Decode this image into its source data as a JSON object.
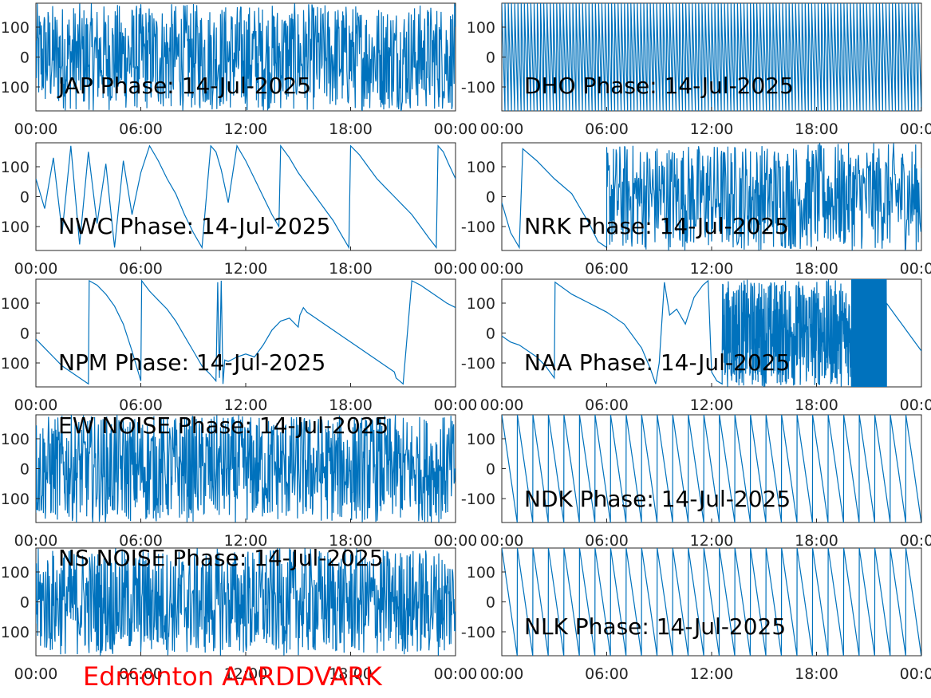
{
  "caption": "Edmonton AARDDVARK",
  "colors": {
    "series": "#0072BD",
    "caption": "#ff0000",
    "axes": "#262626"
  },
  "chart_data": [
    {
      "type": "line",
      "title": "JAP Phase: 14-Jul-2025",
      "x_ticks": [
        "00:00",
        "06:00",
        "12:00",
        "18:00",
        "00:00"
      ],
      "y_ticks": [
        "100",
        "0",
        "100"
      ],
      "ylim": [
        -180,
        180
      ],
      "xlim": [
        0,
        24
      ],
      "pattern": "noise",
      "series": []
    },
    {
      "type": "line",
      "title": "DHO Phase: 14-Jul-2025",
      "x_ticks": [
        "00:00",
        "06:00",
        "12:00",
        "18:00",
        "00:00"
      ],
      "y_ticks": [
        "100",
        "0",
        "-100"
      ],
      "ylim": [
        -180,
        180
      ],
      "xlim": [
        0,
        24
      ],
      "pattern": "dense_saw",
      "series": []
    },
    {
      "type": "line",
      "title": "NWC Phase: 14-Jul-2025",
      "x_ticks": [
        "00:00",
        "06:00",
        "12:00",
        "18:00",
        "00:00"
      ],
      "y_ticks": [
        "100",
        "0",
        "100"
      ],
      "ylim": [
        -180,
        180
      ],
      "xlim": [
        0,
        24
      ],
      "series": [
        {
          "x": [
            0,
            0.5,
            1,
            1.5,
            2,
            2.5,
            3,
            3.5,
            4,
            4.5,
            5,
            5.5,
            6,
            6.5,
            7,
            7.5,
            8,
            8.5,
            9,
            9.5,
            10,
            10.3,
            10.6,
            11,
            11.5,
            12,
            12.5,
            13,
            13.5,
            13.9,
            14,
            14.5,
            15,
            15.5,
            16,
            16.5,
            17,
            17.5,
            17.9,
            18,
            18.5,
            19,
            19.5,
            20,
            20.5,
            21,
            21.5,
            22,
            22.5,
            22.9,
            23,
            23.3,
            23.6,
            24
          ],
          "y": [
            60,
            -40,
            130,
            -120,
            170,
            -160,
            150,
            -90,
            110,
            -170,
            120,
            -60,
            80,
            170,
            120,
            60,
            10,
            -60,
            -120,
            -170,
            170,
            150,
            90,
            -20,
            170,
            120,
            60,
            0,
            -60,
            -100,
            170,
            130,
            80,
            40,
            0,
            -40,
            -80,
            -130,
            -170,
            170,
            140,
            100,
            60,
            30,
            0,
            -30,
            -60,
            -100,
            -140,
            -170,
            170,
            150,
            110,
            60
          ]
        }
      ]
    },
    {
      "type": "line",
      "title": "NRK Phase: 14-Jul-2025",
      "x_ticks": [
        "00:00",
        "06:00",
        "12:00",
        "18:00",
        "00:00"
      ],
      "y_ticks": [
        "100",
        "0",
        "-100"
      ],
      "ylim": [
        -180,
        180
      ],
      "xlim": [
        0,
        24
      ],
      "pattern": "noise_with_early_ramp",
      "series": []
    },
    {
      "type": "line",
      "title": "NPM Phase: 14-Jul-2025",
      "x_ticks": [
        "00:00",
        "06:00",
        "12:00",
        "18:00",
        "00:00"
      ],
      "y_ticks": [
        "100",
        "0",
        "100"
      ],
      "ylim": [
        -180,
        180
      ],
      "xlim": [
        0,
        24
      ],
      "series": [
        {
          "x": [
            0,
            0.5,
            1,
            1.5,
            2,
            2.5,
            3,
            3.05,
            3.5,
            4,
            4.5,
            5,
            5.5,
            6,
            6.05,
            6.5,
            7,
            7.5,
            8,
            8.5,
            9,
            9.5,
            10,
            10.3,
            10.4,
            10.5,
            10.6,
            10.7,
            10.8,
            11,
            11.5,
            12,
            12.5,
            13,
            13.5,
            14,
            14.5,
            15,
            15.1,
            15.3,
            15.5,
            16,
            16.5,
            17,
            17.5,
            18,
            18.5,
            19,
            19.5,
            20,
            20.5,
            20.6,
            21,
            21.5,
            22,
            22.5,
            23,
            23.5,
            24
          ],
          "y": [
            -20,
            -50,
            -80,
            -110,
            -130,
            -150,
            -170,
            175,
            160,
            130,
            90,
            30,
            -60,
            -160,
            175,
            140,
            110,
            80,
            40,
            -10,
            -60,
            -110,
            -140,
            -160,
            170,
            -150,
            175,
            -170,
            -90,
            -95,
            -80,
            -70,
            -80,
            -40,
            10,
            40,
            50,
            20,
            60,
            85,
            70,
            50,
            30,
            10,
            -10,
            -30,
            -50,
            -70,
            -90,
            -110,
            -130,
            -150,
            -170,
            175,
            160,
            140,
            120,
            100,
            85
          ]
        }
      ]
    },
    {
      "type": "line",
      "title": "NAA Phase: 14-Jul-2025",
      "x_ticks": [
        "00:00",
        "06:00",
        "12:00",
        "18:00",
        "00:00"
      ],
      "y_ticks": [
        "100",
        "0",
        "-100"
      ],
      "ylim": [
        -180,
        180
      ],
      "xlim": [
        0,
        24
      ],
      "pattern": "naa",
      "series": []
    },
    {
      "type": "line",
      "title": "EW NOISE Phase: 14-Jul-2025",
      "x_ticks": [
        "00:00",
        "06:00",
        "12:00",
        "18:00",
        "00:00"
      ],
      "y_ticks": [
        "100",
        "0",
        "100"
      ],
      "ylim": [
        -180,
        180
      ],
      "xlim": [
        0,
        24
      ],
      "pattern": "noise",
      "series": []
    },
    {
      "type": "line",
      "title": "NDK Phase: 14-Jul-2025",
      "x_ticks": [
        "00:00",
        "06:00",
        "12:00",
        "18:00",
        "00:00"
      ],
      "y_ticks": [
        "100",
        "0",
        "-100"
      ],
      "ylim": [
        -180,
        180
      ],
      "xlim": [
        0,
        24
      ],
      "pattern": "saw",
      "series": []
    },
    {
      "type": "line",
      "title": "NS NOISE Phase: 14-Jul-2025",
      "x_ticks": [
        "00:00",
        "06:00",
        "12:00",
        "18:00",
        "00:00"
      ],
      "y_ticks": [
        "100",
        "0",
        "100"
      ],
      "ylim": [
        -180,
        180
      ],
      "xlim": [
        0,
        24
      ],
      "pattern": "noise",
      "series": []
    },
    {
      "type": "line",
      "title": "NLK Phase: 14-Jul-2025",
      "x_ticks": [
        "00:00",
        "06:00",
        "12:00",
        "18:00",
        "00:00"
      ],
      "y_ticks": [
        "100",
        "0",
        "-100"
      ],
      "ylim": [
        -180,
        180
      ],
      "xlim": [
        0,
        24
      ],
      "pattern": "saw",
      "series": []
    }
  ]
}
